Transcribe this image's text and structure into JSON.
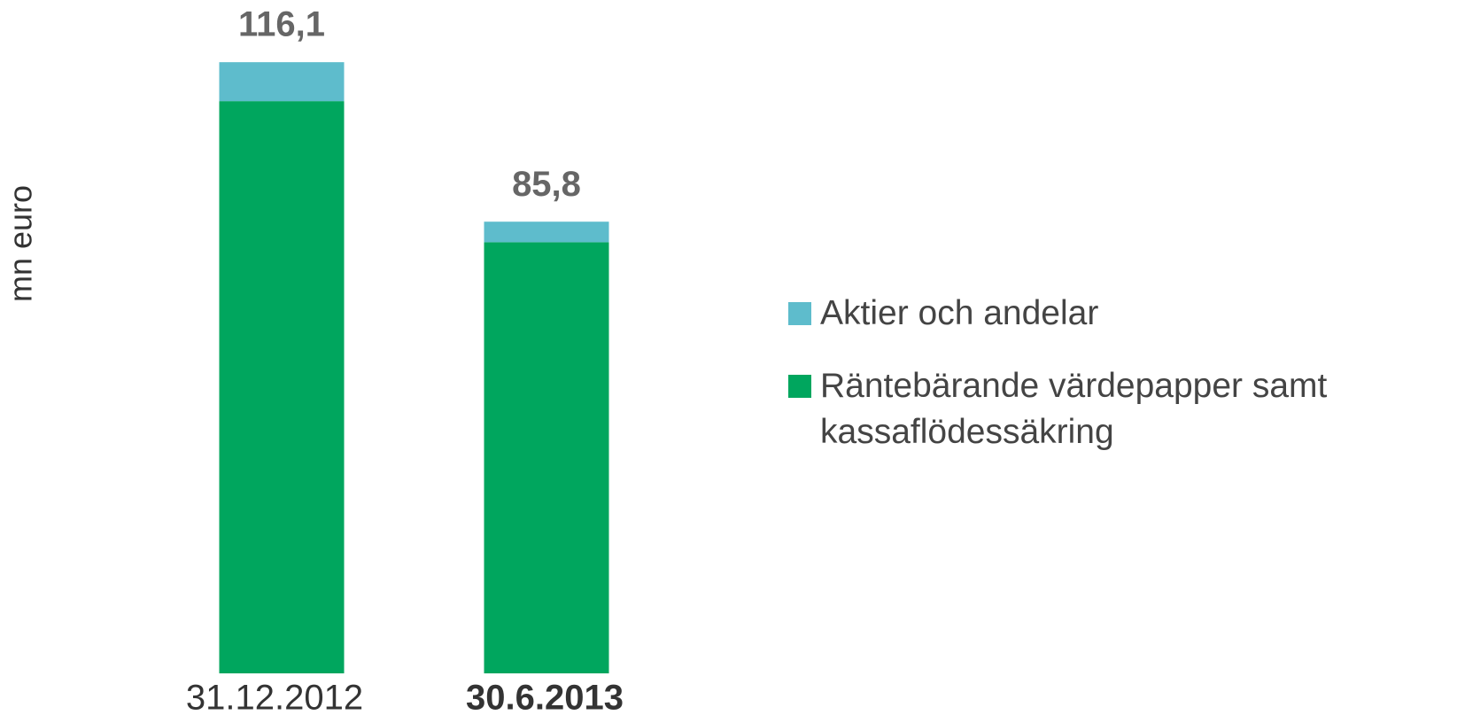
{
  "chart_data": {
    "type": "stacked_bar",
    "y_label": "mn euro",
    "categories": [
      "31.12.2012",
      "30.6.2013"
    ],
    "series": [
      {
        "name": "Räntebärande värdepapper samt kassaflödessäkring",
        "color": "#00a65e",
        "values": [
          108.7,
          81.9
        ]
      },
      {
        "name": "Aktier och andelar",
        "color": "#5ebccc",
        "values": [
          7.4,
          3.9
        ]
      }
    ],
    "totals": [
      116.1,
      85.8
    ],
    "total_labels": [
      "116,1",
      "85,8"
    ],
    "ylim": [
      0,
      120
    ]
  }
}
